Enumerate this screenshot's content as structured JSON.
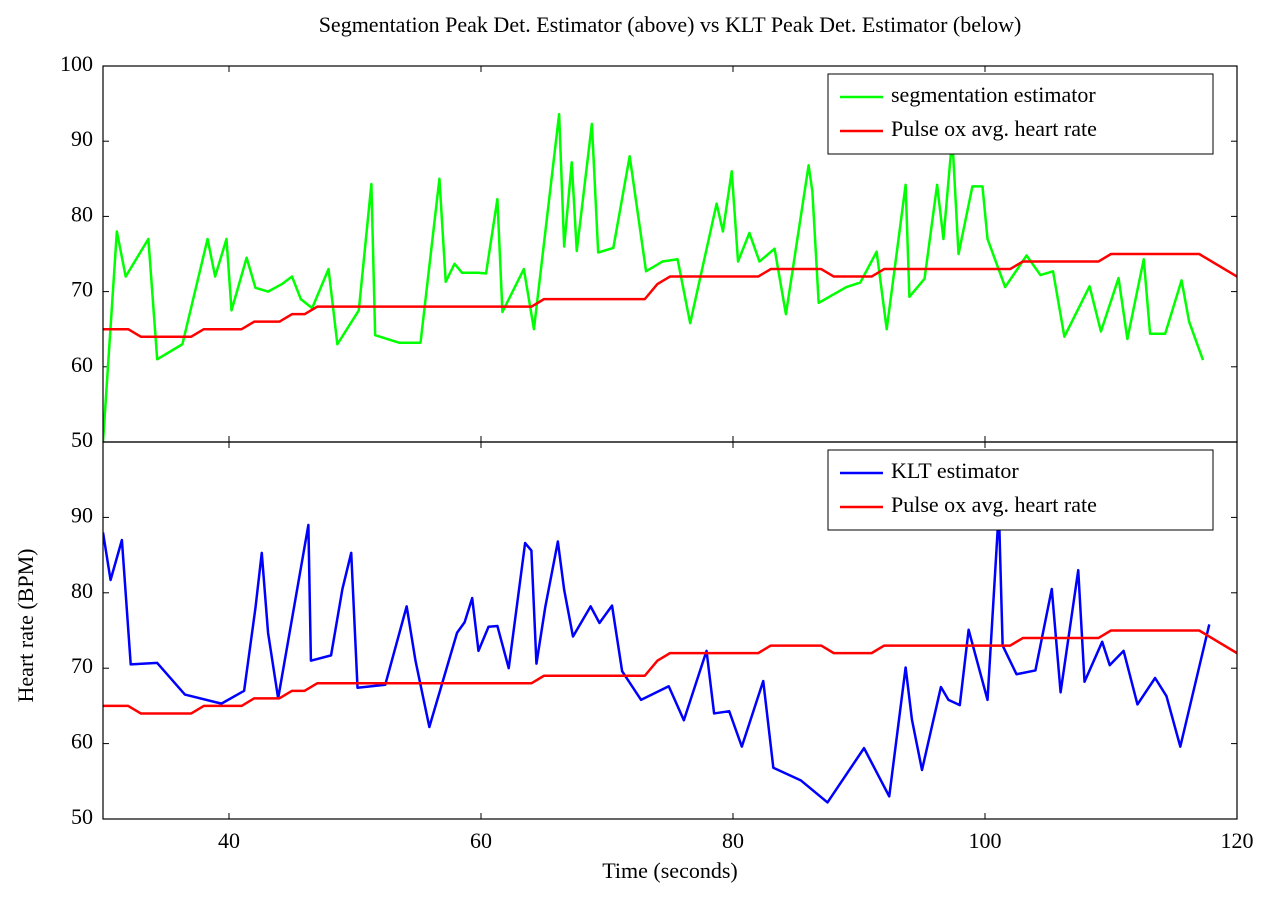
{
  "chart_data": [
    {
      "type": "line",
      "title": "Segmentation Peak Det. Estimator (above) vs KLT Peak Det. Estimator (below)",
      "xlim": [
        30,
        120
      ],
      "xticks": [
        40,
        60,
        80,
        100,
        120
      ],
      "ylim": [
        50,
        100
      ],
      "yticks": [
        50,
        60,
        70,
        80,
        90,
        100
      ],
      "legend": "upper right",
      "series": [
        {
          "name": "segmentation estimator",
          "color": "#00ff00",
          "x": [
            30,
            31.1,
            31.8,
            33.6,
            34.3,
            36.3,
            38.3,
            38.9,
            39.8,
            40.2,
            41.4,
            42.1,
            43.1,
            44.2,
            45,
            45.7,
            46.6,
            47.9,
            48.6,
            50.3,
            51.3,
            51.6,
            53.5,
            55.2,
            56.7,
            57.2,
            57.9,
            58.5,
            59.8,
            60.4,
            61.3,
            61.7,
            63.4,
            64.2,
            66.2,
            66.6,
            67.2,
            67.6,
            68.8,
            69.3,
            70.5,
            71.8,
            73.1,
            74.4,
            75.6,
            76.6,
            78.7,
            79.2,
            79.9,
            80.4,
            81.3,
            82.1,
            83.3,
            84.2,
            86,
            86.3,
            86.8,
            89,
            90.1,
            91.4,
            92.2,
            93.7,
            94,
            95.2,
            96.2,
            96.7,
            97.4,
            97.9,
            99,
            99.8,
            100.2,
            101.6,
            103.3,
            104.4,
            105.4,
            106.3,
            108.3,
            109.2,
            110.6,
            111.3,
            112.6,
            113.1,
            114.3,
            115.6,
            116.2,
            117.3
          ],
          "values": [
            50,
            78,
            72,
            77,
            61,
            63,
            77,
            72,
            77,
            67.5,
            74.5,
            70.5,
            70,
            71,
            72,
            69,
            67.8,
            73,
            63,
            67.5,
            84.3,
            64.2,
            63.2,
            63.2,
            85,
            71.3,
            73.7,
            72.5,
            72.5,
            72.4,
            82.3,
            67.3,
            73,
            65,
            93.6,
            76,
            87.2,
            75.4,
            92.3,
            75.2,
            75.8,
            88,
            72.7,
            74,
            74.3,
            65.8,
            81.7,
            78,
            86,
            74,
            77.8,
            74,
            75.7,
            67,
            86.8,
            83.3,
            68.5,
            70.6,
            71.2,
            75.3,
            65,
            84.2,
            69.3,
            71.7,
            84.2,
            77,
            90.5,
            75,
            84,
            84,
            77,
            70.6,
            74.8,
            72.2,
            72.7,
            64,
            70.7,
            64.7,
            71.8,
            63.7,
            74.3,
            64.4,
            64.4,
            71.5,
            66,
            60.9
          ]
        },
        {
          "name": "Pulse ox avg. heart rate",
          "color": "#ff0000",
          "x": [
            30,
            32,
            33,
            37,
            38,
            41,
            42,
            44,
            45,
            46,
            47,
            64,
            65,
            73,
            74,
            75,
            82,
            83,
            87,
            88,
            91,
            92,
            102,
            103,
            109,
            110,
            117,
            120
          ],
          "values": [
            65,
            65,
            64,
            64,
            65,
            65,
            66,
            66,
            67,
            67,
            68,
            68,
            69,
            69,
            71,
            72,
            72,
            73,
            73,
            72,
            72,
            73,
            73,
            74,
            74,
            75,
            75,
            72
          ]
        }
      ]
    },
    {
      "type": "line",
      "xlabel": "Time (seconds)",
      "ylabel": "Heart rate (BPM)",
      "xlim": [
        30,
        120
      ],
      "xticks": [
        40,
        60,
        80,
        100,
        120
      ],
      "ylim": [
        50,
        100
      ],
      "yticks": [
        50,
        60,
        70,
        80,
        90
      ],
      "legend": "upper right",
      "series": [
        {
          "name": "KLT estimator",
          "color": "#0000ff",
          "x": [
            30,
            30.6,
            31.5,
            32.2,
            34.3,
            36.5,
            39.4,
            41.2,
            42.1,
            42.6,
            43.1,
            43.9,
            46.3,
            46.5,
            48.1,
            49,
            49.7,
            50.2,
            52.4,
            54.1,
            54.8,
            55.9,
            58.1,
            58.7,
            59.3,
            59.8,
            60.6,
            61.3,
            62.2,
            63.5,
            64,
            64.4,
            65.1,
            66.1,
            66.6,
            67.3,
            68.7,
            69.4,
            70.4,
            71.2,
            72.7,
            74.9,
            76.1,
            77.9,
            78.5,
            79.7,
            80.7,
            82.4,
            83.2,
            85.4,
            87.5,
            90.4,
            92.4,
            93.7,
            94.2,
            95,
            96.5,
            97.1,
            98,
            98.7,
            100.2,
            101.1,
            101.4,
            102.5,
            104,
            105.3,
            106,
            107.4,
            107.9,
            109.3,
            109.9,
            111,
            112.1,
            113.5,
            114.4,
            115.5,
            117.8
          ],
          "values": [
            88,
            81.7,
            87,
            70.5,
            70.7,
            66.5,
            65.3,
            67,
            78,
            85.3,
            74.7,
            66,
            89,
            71,
            71.7,
            80.5,
            85.3,
            67.4,
            67.8,
            78.2,
            71,
            62.2,
            74.7,
            76.1,
            79.3,
            72.3,
            75.5,
            75.6,
            70,
            86.6,
            85.6,
            70.6,
            78.1,
            86.8,
            80.4,
            74.2,
            78.2,
            76,
            78.3,
            69.6,
            65.8,
            67.6,
            63.1,
            72.3,
            64,
            64.3,
            59.6,
            68.3,
            56.8,
            55.1,
            52.2,
            59.4,
            53,
            70.1,
            63.2,
            56.5,
            67.5,
            65.8,
            65.1,
            75.1,
            65.8,
            91,
            73,
            69.2,
            69.7,
            80.5,
            66.8,
            83,
            68.2,
            73.5,
            70.4,
            72.3,
            65.2,
            68.7,
            66.3,
            59.6,
            75.8
          ]
        },
        {
          "name": "Pulse ox avg. heart rate",
          "color": "#ff0000",
          "x": [
            30,
            32,
            33,
            37,
            38,
            41,
            42,
            44,
            45,
            46,
            47,
            64,
            65,
            73,
            74,
            75,
            82,
            83,
            87,
            88,
            91,
            92,
            102,
            103,
            109,
            110,
            117,
            120
          ],
          "values": [
            65,
            65,
            64,
            64,
            65,
            65,
            66,
            66,
            67,
            67,
            68,
            68,
            69,
            69,
            71,
            72,
            72,
            73,
            73,
            72,
            72,
            73,
            73,
            74,
            74,
            75,
            75,
            72
          ]
        }
      ]
    }
  ]
}
